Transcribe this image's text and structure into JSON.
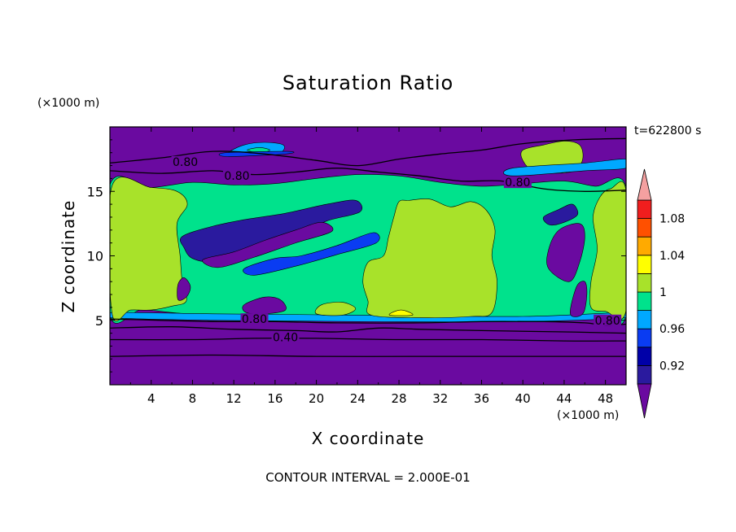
{
  "chart_data": {
    "type": "heatmap",
    "title": "Saturation Ratio",
    "xlabel": "X coordinate",
    "ylabel": "Z coordinate",
    "x_unit": "(×1000 m)",
    "y_unit": "(×1000 m)",
    "time_label": "t=622800 s",
    "footer": "CONTOUR INTERVAL = 2.000E-01",
    "xlim": [
      0,
      50
    ],
    "ylim": [
      0,
      20
    ],
    "x_ticks": [
      4,
      8,
      12,
      16,
      20,
      24,
      28,
      32,
      36,
      40,
      44,
      48
    ],
    "y_ticks": [
      5,
      10,
      15
    ],
    "contour_labels": [
      {
        "text": "0.80",
        "x": 7.3,
        "y": 17.3
      },
      {
        "text": "0.80",
        "x": 12.3,
        "y": 16.2
      },
      {
        "text": "0.80",
        "x": 39.5,
        "y": 15.7
      },
      {
        "text": "0.80",
        "x": 14.0,
        "y": 5.1
      },
      {
        "text": "0.40",
        "x": 17.0,
        "y": 3.7
      },
      {
        "text": "0.80",
        "x": 48.2,
        "y": 5.0
      }
    ],
    "colorbar": {
      "levels": [
        0.92,
        0.96,
        1,
        1.04,
        1.08
      ],
      "tick_labels": [
        "0.92",
        "0.96",
        "1",
        "1.04",
        "1.08"
      ],
      "bands": [
        {
          "lo": 0.9,
          "hi": 0.92,
          "color": "#2a1a9e"
        },
        {
          "lo": 0.92,
          "hi": 0.94,
          "color": "#0000a8"
        },
        {
          "lo": 0.94,
          "hi": 0.96,
          "color": "#0a3cf2"
        },
        {
          "lo": 0.96,
          "hi": 0.98,
          "color": "#00a8ff"
        },
        {
          "lo": 0.98,
          "hi": 1.0,
          "color": "#00e28c"
        },
        {
          "lo": 1.0,
          "hi": 1.02,
          "color": "#a8e22a"
        },
        {
          "lo": 1.02,
          "hi": 1.04,
          "color": "#ffff00"
        },
        {
          "lo": 1.04,
          "hi": 1.06,
          "color": "#ffaa00"
        },
        {
          "lo": 1.06,
          "hi": 1.08,
          "color": "#ff5000"
        },
        {
          "lo": 1.08,
          "hi": 1.1,
          "color": "#f01e1e"
        }
      ],
      "under_color": "#6a0aa0",
      "over_color": "#f4a0a0"
    },
    "regions": [
      {
        "name": "background",
        "value": 0.88,
        "color": "#6a0aa0",
        "points": [
          [
            0,
            0
          ],
          [
            50,
            0
          ],
          [
            50,
            20
          ],
          [
            0,
            20
          ]
        ]
      },
      {
        "name": "humid-layer",
        "value": 0.99,
        "color": "#00e28c",
        "points": [
          [
            0,
            5.4
          ],
          [
            3,
            5.8
          ],
          [
            6,
            5.6
          ],
          [
            10,
            5.3
          ],
          [
            16,
            5.1
          ],
          [
            24,
            5.2
          ],
          [
            28,
            5.1
          ],
          [
            36,
            5.2
          ],
          [
            40,
            5.1
          ],
          [
            44,
            5.3
          ],
          [
            46,
            5.1
          ],
          [
            48,
            5.2
          ],
          [
            50,
            5.5
          ],
          [
            50,
            15.3
          ],
          [
            47,
            15.4
          ],
          [
            44,
            15.8
          ],
          [
            40,
            15.6
          ],
          [
            36,
            15.4
          ],
          [
            32,
            15.7
          ],
          [
            28,
            16.2
          ],
          [
            24,
            16.3
          ],
          [
            20,
            16.0
          ],
          [
            16,
            15.6
          ],
          [
            12,
            15.5
          ],
          [
            8,
            15.7
          ],
          [
            4,
            15.3
          ],
          [
            0,
            15.5
          ]
        ]
      },
      {
        "name": "humid-edge",
        "value": 0.97,
        "color": "#00a8ff",
        "points": [
          [
            0,
            5.2
          ],
          [
            10,
            5.0
          ],
          [
            24,
            4.9
          ],
          [
            40,
            4.9
          ],
          [
            50,
            5.2
          ],
          [
            50,
            5.6
          ],
          [
            40,
            5.3
          ],
          [
            24,
            5.4
          ],
          [
            10,
            5.5
          ],
          [
            0,
            5.6
          ]
        ]
      },
      {
        "name": "supersat-center",
        "value": 1.01,
        "color": "#a8e22a",
        "points": [
          [
            25.3,
            5.4
          ],
          [
            30,
            5.2
          ],
          [
            35,
            5.3
          ],
          [
            37,
            5.6
          ],
          [
            37.5,
            8
          ],
          [
            37,
            10
          ],
          [
            37.3,
            12
          ],
          [
            36.5,
            13.5
          ],
          [
            35,
            14.2
          ],
          [
            33,
            13.8
          ],
          [
            31,
            14.4
          ],
          [
            29,
            14.3
          ],
          [
            28,
            14.2
          ],
          [
            27.5,
            13
          ],
          [
            27,
            11.5
          ],
          [
            26.5,
            10
          ],
          [
            25,
            9.5
          ],
          [
            24.5,
            8
          ],
          [
            25,
            6.5
          ]
        ]
      },
      {
        "name": "supersat-left",
        "value": 1.01,
        "color": "#a8e22a",
        "points": [
          [
            0.2,
            5.6
          ],
          [
            2,
            5.8
          ],
          [
            4,
            5.8
          ],
          [
            6,
            6.1
          ],
          [
            7.4,
            6.5
          ],
          [
            7,
            8
          ],
          [
            6.8,
            10
          ],
          [
            6.5,
            12.5
          ],
          [
            7.5,
            14
          ],
          [
            6.5,
            15
          ],
          [
            4,
            15.3
          ],
          [
            0.2,
            15.4
          ]
        ]
      },
      {
        "name": "supersat-right",
        "value": 1.01,
        "color": "#a8e22a",
        "points": [
          [
            46.6,
            6
          ],
          [
            48,
            5.7
          ],
          [
            50,
            5.8
          ],
          [
            50,
            15
          ],
          [
            48.5,
            15.2
          ],
          [
            47.5,
            14.6
          ],
          [
            46.8,
            13
          ],
          [
            47.2,
            10.5
          ],
          [
            46.6,
            8
          ]
        ]
      },
      {
        "name": "supersat-upper-right",
        "value": 1.01,
        "color": "#a8e22a",
        "points": [
          [
            40,
            18.2
          ],
          [
            42,
            18.6
          ],
          [
            44,
            18.9
          ],
          [
            45.5,
            18.6
          ],
          [
            45.8,
            17.5
          ],
          [
            45,
            16.6
          ],
          [
            43,
            16.4
          ],
          [
            41,
            16.6
          ],
          [
            40,
            17.4
          ]
        ]
      },
      {
        "name": "supersat-blob",
        "value": 1.01,
        "color": "#a8e22a",
        "points": [
          [
            20,
            5.5
          ],
          [
            22.5,
            5.4
          ],
          [
            23.8,
            5.9
          ],
          [
            22.5,
            6.4
          ],
          [
            20.5,
            6.2
          ]
        ]
      },
      {
        "name": "near-sat-band",
        "value": 1.0,
        "color": "#00a8ff",
        "points": [
          [
            39,
            16.2
          ],
          [
            46,
            16.6
          ],
          [
            50,
            16.8
          ],
          [
            50,
            17.5
          ],
          [
            46,
            17.2
          ],
          [
            39,
            16.8
          ]
        ]
      },
      {
        "name": "yellow-bubble",
        "value": 1.03,
        "color": "#ffff00",
        "points": [
          [
            27.1,
            5.4
          ],
          [
            27.8,
            5.75
          ],
          [
            28.6,
            5.75
          ],
          [
            29.3,
            5.4
          ]
        ]
      },
      {
        "name": "dry-intrusion-1",
        "value": 0.93,
        "color": "#2a1a9e",
        "points": [
          [
            7,
            11.5
          ],
          [
            10,
            12.3
          ],
          [
            13,
            12.8
          ],
          [
            17,
            13.3
          ],
          [
            21,
            14.0
          ],
          [
            23.8,
            14.3
          ],
          [
            24.2,
            13.4
          ],
          [
            21,
            12.7
          ],
          [
            18,
            11.6
          ],
          [
            14,
            10.6
          ],
          [
            10,
            9.6
          ],
          [
            8,
            9.8
          ],
          [
            7.2,
            10.6
          ]
        ]
      },
      {
        "name": "dry-intrusion-2",
        "value": 0.92,
        "color": "#6a0aa0",
        "points": [
          [
            9,
            9.7
          ],
          [
            12,
            10.3
          ],
          [
            15,
            11.2
          ],
          [
            18,
            12.0
          ],
          [
            20.5,
            12.6
          ],
          [
            21.5,
            11.9
          ],
          [
            18,
            11.0
          ],
          [
            14,
            9.9
          ],
          [
            10.5,
            9.1
          ]
        ]
      },
      {
        "name": "dry-intrusion-3",
        "value": 0.94,
        "color": "#0a3cf2",
        "points": [
          [
            13,
            9.0
          ],
          [
            16,
            9.8
          ],
          [
            18.5,
            10.0
          ],
          [
            22,
            10.8
          ],
          [
            25.5,
            11.8
          ],
          [
            25.8,
            11.0
          ],
          [
            22,
            10.1
          ],
          [
            18,
            9.2
          ],
          [
            14,
            8.5
          ]
        ]
      },
      {
        "name": "dry-patch-left",
        "value": 0.91,
        "color": "#6a0aa0",
        "points": [
          [
            6.6,
            6.6
          ],
          [
            7.4,
            6.8
          ],
          [
            7.8,
            7.6
          ],
          [
            7.2,
            8.3
          ],
          [
            6.6,
            7.8
          ]
        ]
      },
      {
        "name": "dry-patch-mid",
        "value": 0.91,
        "color": "#6a0aa0",
        "points": [
          [
            13,
            6.2
          ],
          [
            15,
            6.8
          ],
          [
            16.5,
            6.6
          ],
          [
            17,
            5.8
          ],
          [
            15,
            5.5
          ],
          [
            13.2,
            5.6
          ]
        ]
      },
      {
        "name": "dry-patch-right",
        "value": 0.9,
        "color": "#6a0aa0",
        "points": [
          [
            42.5,
            9.0
          ],
          [
            44.5,
            8.0
          ],
          [
            45.5,
            9.5
          ],
          [
            46,
            11.5
          ],
          [
            45.5,
            12.5
          ],
          [
            43.5,
            12.0
          ],
          [
            42.5,
            10.5
          ]
        ]
      },
      {
        "name": "dry-strip-right",
        "value": 0.9,
        "color": "#6a0aa0",
        "points": [
          [
            44.6,
            5.5
          ],
          [
            45.8,
            5.5
          ],
          [
            46.2,
            7.0
          ],
          [
            46.0,
            8.0
          ],
          [
            45.2,
            7.6
          ]
        ]
      },
      {
        "name": "dry-arc-right",
        "value": 0.91,
        "color": "#2a1a9e",
        "points": [
          [
            42.0,
            13.0
          ],
          [
            43.5,
            13.6
          ],
          [
            44.8,
            14.0
          ],
          [
            45.3,
            13.2
          ],
          [
            44.0,
            12.6
          ],
          [
            42.6,
            12.4
          ]
        ]
      },
      {
        "name": "cap-patch",
        "value": 0.96,
        "color": "#00a8ff",
        "points": [
          [
            11.5,
            18.0
          ],
          [
            13,
            18.6
          ],
          [
            15,
            18.8
          ],
          [
            16.8,
            18.6
          ],
          [
            16.5,
            18.0
          ],
          [
            14.5,
            17.8
          ],
          [
            12.5,
            17.8
          ]
        ]
      },
      {
        "name": "cap-core",
        "value": 0.99,
        "color": "#00e28c",
        "points": [
          [
            13.3,
            18.2
          ],
          [
            14.5,
            18.4
          ],
          [
            15.5,
            18.2
          ],
          [
            14.5,
            18.0
          ]
        ]
      },
      {
        "name": "cap-edge",
        "value": 0.94,
        "color": "#0a3cf2",
        "points": [
          [
            11.4,
            17.7
          ],
          [
            17,
            17.9
          ],
          [
            17.2,
            18.1
          ],
          [
            11.2,
            18.0
          ]
        ]
      }
    ],
    "contours": [
      {
        "level": 0.8,
        "points": [
          [
            0,
            17.2
          ],
          [
            5,
            17.6
          ],
          [
            10,
            18.1
          ],
          [
            15,
            17.9
          ],
          [
            20,
            17.4
          ],
          [
            24,
            17.0
          ],
          [
            28,
            17.5
          ],
          [
            32,
            17.9
          ],
          [
            36,
            18.2
          ],
          [
            40,
            18.7
          ],
          [
            45,
            19.0
          ],
          [
            50,
            19.1
          ]
        ]
      },
      {
        "level": 0.8,
        "points": [
          [
            0,
            16.6
          ],
          [
            5,
            16.4
          ],
          [
            10,
            16.6
          ],
          [
            14,
            16.3
          ],
          [
            18,
            16.5
          ],
          [
            22,
            16.8
          ],
          [
            26,
            16.5
          ],
          [
            30,
            16.2
          ],
          [
            34,
            15.8
          ],
          [
            38,
            15.8
          ],
          [
            42,
            15.2
          ],
          [
            46,
            15.0
          ],
          [
            50,
            15.1
          ]
        ]
      },
      {
        "level": 0.8,
        "points": [
          [
            0,
            5.1
          ],
          [
            5,
            5.0
          ],
          [
            10,
            4.9
          ],
          [
            16,
            4.9
          ],
          [
            22,
            4.8
          ],
          [
            30,
            4.8
          ],
          [
            36,
            4.9
          ],
          [
            42,
            4.9
          ],
          [
            46,
            4.8
          ],
          [
            48,
            4.6
          ],
          [
            50,
            4.7
          ]
        ]
      },
      {
        "level": 0.6,
        "points": [
          [
            0,
            4.4
          ],
          [
            6,
            4.5
          ],
          [
            12,
            4.3
          ],
          [
            18,
            4.2
          ],
          [
            22,
            4.1
          ],
          [
            26,
            4.4
          ],
          [
            30,
            4.3
          ],
          [
            36,
            4.2
          ],
          [
            44,
            4.1
          ],
          [
            50,
            4.0
          ]
        ]
      },
      {
        "level": 0.4,
        "points": [
          [
            0,
            3.5
          ],
          [
            8,
            3.5
          ],
          [
            14,
            3.6
          ],
          [
            20,
            3.6
          ],
          [
            28,
            3.5
          ],
          [
            36,
            3.5
          ],
          [
            44,
            3.4
          ],
          [
            50,
            3.4
          ]
        ]
      },
      {
        "level": 0.2,
        "points": [
          [
            0,
            2.2
          ],
          [
            10,
            2.3
          ],
          [
            20,
            2.2
          ],
          [
            30,
            2.2
          ],
          [
            40,
            2.2
          ],
          [
            50,
            2.2
          ]
        ]
      }
    ]
  }
}
